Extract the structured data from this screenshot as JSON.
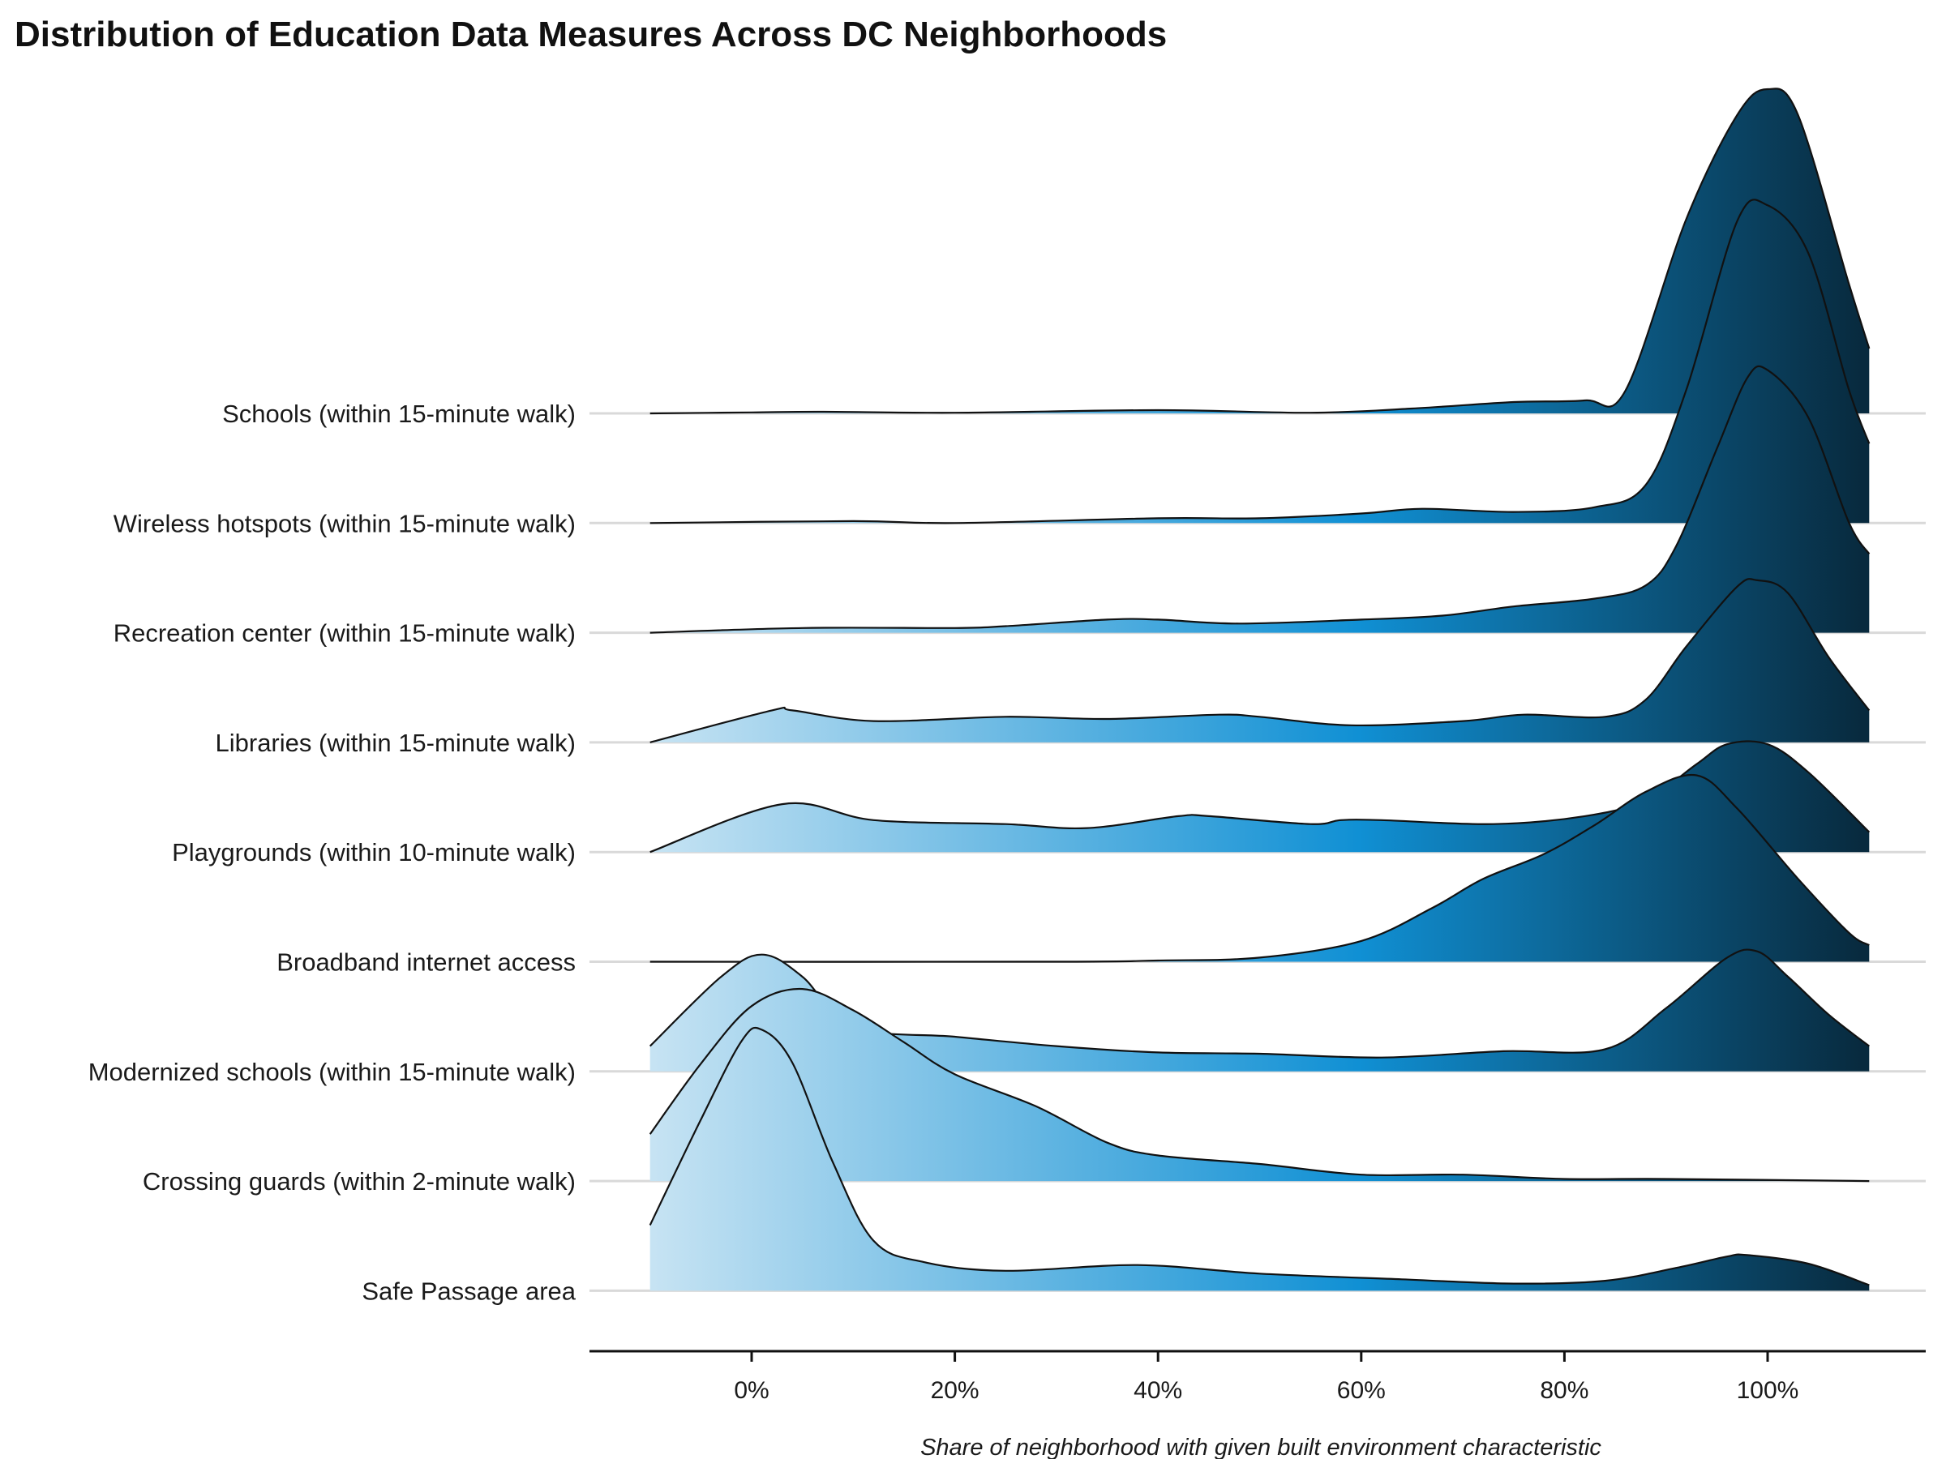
{
  "chart_data": {
    "type": "ridgeline",
    "title": "Distribution of Education Data Measures Across DC Neighborhoods",
    "xlabel": "Share of neighborhood with given built environment characteristic",
    "ylabel": "",
    "x_ticks": [
      0,
      20,
      40,
      60,
      80,
      100
    ],
    "x_tick_labels": [
      "0%",
      "20%",
      "40%",
      "60%",
      "80%",
      "100%"
    ],
    "xlim": [
      -16,
      117
    ],
    "density_range": [
      -10,
      110
    ],
    "fill_gradient": {
      "by": "x",
      "stops": [
        [
          "-10",
          "#c6e3f3"
        ],
        [
          "60",
          "#1090d4"
        ],
        [
          "110",
          "#082a3e"
        ]
      ]
    },
    "grid": "horizontal baselines",
    "legend": "none",
    "series": [
      {
        "name": "Schools (within 15-minute walk)",
        "density": [
          [
            -10,
            0
          ],
          [
            0,
            0.3
          ],
          [
            7,
            0.5
          ],
          [
            20,
            0.2
          ],
          [
            40,
            1.0
          ],
          [
            55,
            0.2
          ],
          [
            65,
            1.5
          ],
          [
            75,
            3.5
          ],
          [
            82,
            4
          ],
          [
            86,
            7
          ],
          [
            92,
            60
          ],
          [
            97,
            92
          ],
          [
            100,
            100
          ],
          [
            103,
            92
          ],
          [
            108,
            40
          ],
          [
            110,
            20
          ]
        ]
      },
      {
        "name": "Wireless hotspots (within 15-minute walk)",
        "density": [
          [
            -10,
            0
          ],
          [
            10,
            0.6
          ],
          [
            20,
            0
          ],
          [
            40,
            1.5
          ],
          [
            50,
            1.5
          ],
          [
            60,
            3
          ],
          [
            66,
            4.5
          ],
          [
            75,
            3.5
          ],
          [
            83,
            5
          ],
          [
            88,
            12
          ],
          [
            92,
            42
          ],
          [
            97,
            95
          ],
          [
            100,
            100
          ],
          [
            104,
            85
          ],
          [
            108,
            42
          ],
          [
            110,
            25
          ]
        ]
      },
      {
        "name": "Recreation center (within 15-minute walk)",
        "density": [
          [
            -10,
            0
          ],
          [
            5,
            1.8
          ],
          [
            20,
            1.8
          ],
          [
            25,
            2.5
          ],
          [
            35,
            5
          ],
          [
            40,
            5
          ],
          [
            48,
            3.5
          ],
          [
            60,
            5
          ],
          [
            68,
            6.5
          ],
          [
            75,
            10
          ],
          [
            83,
            13
          ],
          [
            88,
            18
          ],
          [
            91,
            33
          ],
          [
            95,
            70
          ],
          [
            98,
            97
          ],
          [
            100,
            100
          ],
          [
            104,
            82
          ],
          [
            108,
            42
          ],
          [
            110,
            30
          ]
        ]
      },
      {
        "name": "Libraries (within 15-minute walk)",
        "density": [
          [
            -10,
            0
          ],
          [
            2,
            1.5
          ],
          [
            4,
            1.5
          ],
          [
            12,
            1
          ],
          [
            25,
            1.2
          ],
          [
            35,
            1.1
          ],
          [
            46,
            1.3
          ],
          [
            50,
            1.2
          ],
          [
            59,
            0.8
          ],
          [
            70,
            1
          ],
          [
            76,
            1.3
          ],
          [
            84,
            1.2
          ],
          [
            88,
            2
          ],
          [
            92,
            4.5
          ],
          [
            97,
            7.3
          ],
          [
            99,
            7.6
          ],
          [
            102,
            7
          ],
          [
            106,
            4
          ],
          [
            110,
            1.5
          ]
        ]
      },
      {
        "name": "Playgrounds (within 10-minute walk)",
        "density": [
          [
            -10,
            0
          ],
          [
            3,
            1.2
          ],
          [
            12,
            0.8
          ],
          [
            25,
            0.7
          ],
          [
            33,
            0.6
          ],
          [
            42,
            0.9
          ],
          [
            45,
            0.9
          ],
          [
            55,
            0.7
          ],
          [
            58,
            0.8
          ],
          [
            62,
            0.8
          ],
          [
            73,
            0.7
          ],
          [
            82,
            0.9
          ],
          [
            88,
            1.3
          ],
          [
            93,
            2.2
          ],
          [
            96,
            2.7
          ],
          [
            100,
            2.7
          ],
          [
            104,
            2.0
          ],
          [
            110,
            0.5
          ]
        ]
      },
      {
        "name": "Broadband internet access",
        "density": [
          [
            -10,
            0
          ],
          [
            30,
            0
          ],
          [
            40,
            0.3
          ],
          [
            50,
            1
          ],
          [
            60,
            5
          ],
          [
            67,
            13
          ],
          [
            72,
            20
          ],
          [
            78,
            26
          ],
          [
            83,
            33
          ],
          [
            88,
            41
          ],
          [
            93,
            45
          ],
          [
            97,
            37
          ],
          [
            103,
            20
          ],
          [
            108,
            7
          ],
          [
            110,
            4
          ]
        ]
      },
      {
        "name": "Modernized schools (within 15-minute walk)",
        "density": [
          [
            -10,
            4
          ],
          [
            -3,
            15
          ],
          [
            1,
            18.5
          ],
          [
            5,
            15
          ],
          [
            10,
            7
          ],
          [
            20,
            5.5
          ],
          [
            30,
            4
          ],
          [
            40,
            3
          ],
          [
            50,
            2.8
          ],
          [
            62,
            2.2
          ],
          [
            74,
            3.2
          ],
          [
            84,
            3.5
          ],
          [
            90,
            10
          ],
          [
            96,
            18
          ],
          [
            99,
            19
          ],
          [
            102,
            15
          ],
          [
            106,
            9
          ],
          [
            110,
            4
          ]
        ]
      },
      {
        "name": "Crossing guards (within 2-minute walk)",
        "density": [
          [
            -10,
            2.2
          ],
          [
            -5,
            5.5
          ],
          [
            0,
            8.2
          ],
          [
            5,
            9.0
          ],
          [
            10,
            8.0
          ],
          [
            15,
            6.5
          ],
          [
            20,
            5
          ],
          [
            28,
            3.5
          ],
          [
            35,
            1.8
          ],
          [
            40,
            1.2
          ],
          [
            50,
            0.8
          ],
          [
            60,
            0.3
          ],
          [
            70,
            0.3
          ],
          [
            80,
            0.1
          ],
          [
            90,
            0.1
          ],
          [
            110,
            0
          ]
        ]
      },
      {
        "name": "Safe Passage area",
        "density": [
          [
            -10,
            4.6
          ],
          [
            -5,
            12
          ],
          [
            -1,
            17.5
          ],
          [
            1,
            18.3
          ],
          [
            4,
            16
          ],
          [
            8,
            9
          ],
          [
            12,
            3.5
          ],
          [
            17,
            2
          ],
          [
            25,
            1.4
          ],
          [
            38,
            1.8
          ],
          [
            50,
            1.2
          ],
          [
            64,
            0.8
          ],
          [
            75,
            0.5
          ],
          [
            84,
            0.7
          ],
          [
            91,
            1.6
          ],
          [
            96,
            2.4
          ],
          [
            98,
            2.5
          ],
          [
            104,
            1.9
          ],
          [
            110,
            0.4
          ]
        ]
      }
    ]
  }
}
